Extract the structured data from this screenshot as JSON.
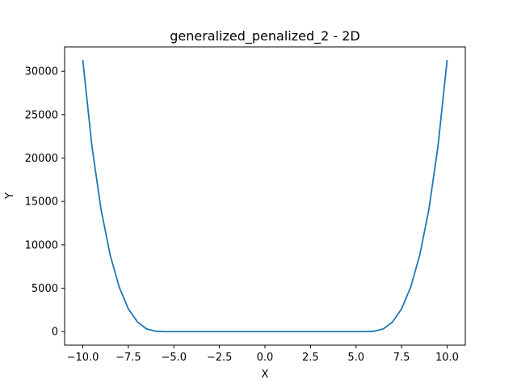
{
  "chart_data": {
    "type": "line",
    "title": "generalized_penalized_2 - 2D",
    "xlabel": "X",
    "ylabel": "Y",
    "xlim": [
      -11.0,
      11.0
    ],
    "ylim": [
      -1563,
      32813
    ],
    "grid": false,
    "line_color": "#1f77b4",
    "x_ticks": [
      -10.0,
      -7.5,
      -5.0,
      -2.5,
      0.0,
      2.5,
      5.0,
      7.5,
      10.0
    ],
    "x_tick_labels": [
      "−10.0",
      "−7.5",
      "−5.0",
      "−2.5",
      "0.0",
      "2.5",
      "5.0",
      "7.5",
      "10.0"
    ],
    "y_ticks": [
      0,
      5000,
      10000,
      15000,
      20000,
      25000,
      30000
    ],
    "y_tick_labels": [
      "0",
      "5000",
      "10000",
      "15000",
      "20000",
      "25000",
      "30000"
    ],
    "series": [
      {
        "x": [
          -10.0,
          -9.5,
          -9.0,
          -8.5,
          -8.0,
          -7.5,
          -7.0,
          -6.5,
          -6.0,
          -5.5,
          -5.0,
          -2.5,
          0.0,
          2.5,
          5.0,
          5.5,
          6.0,
          6.5,
          7.0,
          7.5,
          8.0,
          8.5,
          9.0,
          9.5,
          10.0
        ],
        "y": [
          31250,
          21350,
          14070,
          8830,
          5110,
          2620,
          1100,
          310,
          40,
          0,
          0,
          0,
          0,
          0,
          0,
          0,
          40,
          310,
          1100,
          2620,
          5110,
          8830,
          14070,
          21350,
          31250
        ]
      }
    ]
  }
}
